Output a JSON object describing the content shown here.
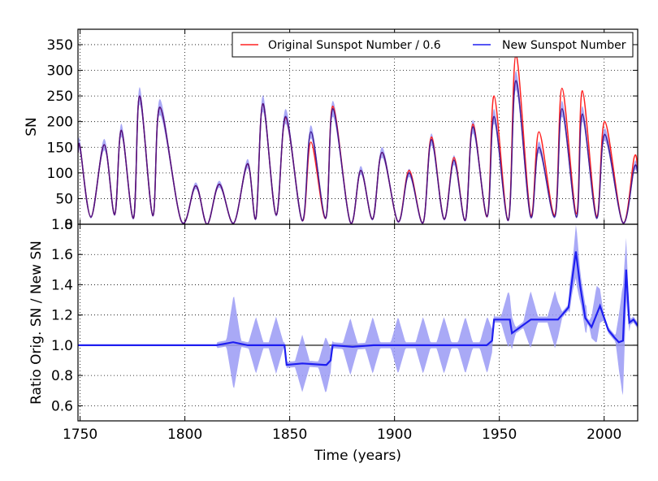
{
  "chart_data": [
    {
      "type": "line",
      "ylabel": "SN",
      "xlim": [
        1749,
        2016
      ],
      "ylim": [
        0,
        380
      ],
      "yticks": [
        0,
        50,
        100,
        150,
        200,
        250,
        300,
        350
      ],
      "ytick_labels": [
        "0",
        "50",
        "100",
        "150",
        "200",
        "250",
        "300",
        "350"
      ],
      "grid": true,
      "legend_position": "top-right",
      "legend": [
        "Original Sunspot Number / 0.6",
        "New Sunspot Number"
      ],
      "series": [
        {
          "name": "Original Sunspot Number / 0.6",
          "color": "#ff2222",
          "x": [
            1749,
            1750,
            1755.2,
            1761.5,
            1766.5,
            1769.7,
            1775.5,
            1778.4,
            1784.7,
            1788.1,
            1798.3,
            1805.2,
            1810.6,
            1816.4,
            1823.3,
            1829.9,
            1833.9,
            1837.2,
            1843.5,
            1848.1,
            1856.0,
            1860.1,
            1867.2,
            1870.6,
            1878.9,
            1883.9,
            1889.6,
            1894.1,
            1901.7,
            1907.0,
            1913.6,
            1917.6,
            1923.6,
            1928.4,
            1933.8,
            1937.4,
            1944.2,
            1947.5,
            1954.3,
            1957.9,
            1964.9,
            1968.9,
            1976.5,
            1979.9,
            1986.8,
            1989.6,
            1996.4,
            2000.3,
            2008.9,
            2014.3,
            2016
          ],
          "values": [
            140,
            150,
            14,
            155,
            19,
            183,
            12,
            250,
            17,
            228,
            6,
            75,
            0,
            78,
            2,
            118,
            12,
            235,
            18,
            208,
            7,
            160,
            12,
            230,
            4,
            105,
            10,
            140,
            5,
            105,
            3,
            170,
            10,
            130,
            8,
            195,
            15,
            250,
            8,
            330,
            18,
            180,
            18,
            265,
            20,
            260,
            15,
            200,
            3,
            130,
            110
          ]
        },
        {
          "name": "New Sunspot Number",
          "color": "#1e1ef0",
          "band_color": "#9a9af5",
          "x": [
            1749,
            1750,
            1755.2,
            1761.5,
            1766.5,
            1769.7,
            1775.5,
            1778.4,
            1784.7,
            1788.1,
            1798.3,
            1805.2,
            1810.6,
            1816.4,
            1823.3,
            1829.9,
            1833.9,
            1837.2,
            1843.5,
            1848.1,
            1856.0,
            1860.1,
            1867.2,
            1870.6,
            1878.9,
            1883.9,
            1889.6,
            1894.1,
            1901.7,
            1907.0,
            1913.6,
            1917.6,
            1923.6,
            1928.4,
            1933.8,
            1937.4,
            1944.2,
            1947.5,
            1954.3,
            1957.9,
            1964.9,
            1968.9,
            1976.5,
            1979.9,
            1986.8,
            1989.6,
            1996.4,
            2000.3,
            2008.9,
            2014.3,
            2016
          ],
          "values": [
            140,
            150,
            14,
            155,
            19,
            183,
            12,
            250,
            17,
            228,
            6,
            75,
            0,
            78,
            2,
            118,
            12,
            235,
            18,
            210,
            7,
            180,
            12,
            225,
            4,
            105,
            10,
            140,
            5,
            100,
            3,
            165,
            10,
            125,
            8,
            190,
            15,
            210,
            8,
            280,
            15,
            150,
            15,
            225,
            14,
            215,
            12,
            175,
            3,
            110,
            100
          ]
        }
      ]
    },
    {
      "type": "line",
      "xlabel": "Time (years)",
      "ylabel": "Ratio Orig. SN / New SN",
      "xlim": [
        1749,
        2016
      ],
      "ylim": [
        0.5,
        1.8
      ],
      "yticks": [
        0.6,
        0.8,
        1.0,
        1.2,
        1.4,
        1.6,
        1.8
      ],
      "ytick_labels": [
        "0.6",
        "0.8",
        "1.0",
        "1.2",
        "1.4",
        "1.6",
        "1.8"
      ],
      "xticks": [
        1750,
        1800,
        1850,
        1900,
        1950,
        2000
      ],
      "xtick_labels": [
        "1750",
        "1800",
        "1850",
        "1900",
        "1950",
        "2000"
      ],
      "reference_line": 1.0,
      "grid": true,
      "series": [
        {
          "name": "Ratio Orig. SN / New SN",
          "color": "#1e1ef0",
          "band_color": "#9a9af5",
          "x": [
            1749,
            1790,
            1810,
            1815,
            1823,
            1830,
            1847.5,
            1848.5,
            1856,
            1866.5,
            1867.5,
            1869.5,
            1870.5,
            1880,
            1890,
            1900,
            1913,
            1920,
            1930,
            1944,
            1946.5,
            1947.5,
            1955,
            1956,
            1965,
            1970,
            1978,
            1983,
            1986.5,
            1988.5,
            1991,
            1994,
            1998,
            2002,
            2005,
            2007,
            2009,
            2010.5,
            2012,
            2014,
            2016
          ],
          "values": [
            1.0,
            1.0,
            1.0,
            1.0,
            1.02,
            1.0,
            1.0,
            0.87,
            0.88,
            0.87,
            0.87,
            0.9,
            1.0,
            0.99,
            1.0,
            1.0,
            1.0,
            1.0,
            1.0,
            1.0,
            1.03,
            1.17,
            1.17,
            1.08,
            1.17,
            1.17,
            1.17,
            1.25,
            1.62,
            1.4,
            1.18,
            1.12,
            1.26,
            1.1,
            1.05,
            1.02,
            1.03,
            1.5,
            1.15,
            1.17,
            1.13
          ]
        }
      ]
    }
  ]
}
